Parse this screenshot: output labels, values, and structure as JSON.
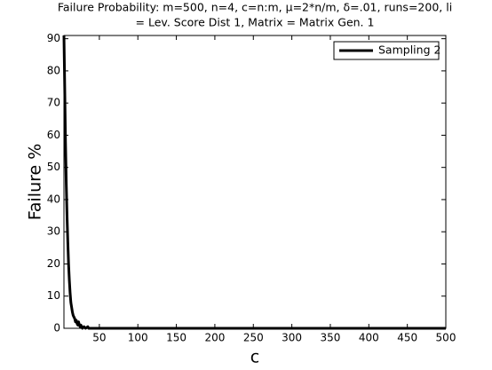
{
  "chart_data": {
    "type": "line",
    "title": [
      "Failure Probability: m=500, n=4, c=n:m, μ=2*n/m, δ=.01, runs=200, li",
      "= Lev. Score Dist 1, Matrix = Matrix Gen. 1"
    ],
    "xlabel": "c",
    "ylabel": "Failure %",
    "x": [
      4,
      5,
      6,
      7,
      8,
      9,
      10,
      11,
      12,
      13,
      14,
      15,
      16,
      17,
      18,
      19,
      20,
      21,
      22,
      23,
      24,
      25,
      26,
      27,
      28,
      30,
      32,
      35,
      36,
      500
    ],
    "series": [
      {
        "name": "Sampling 2",
        "color": "#000000",
        "values": [
          91,
          75,
          58,
          45,
          35,
          27,
          20,
          15,
          11,
          8,
          6.5,
          5,
          4,
          3.5,
          3,
          2,
          2.5,
          1.5,
          1,
          2,
          1,
          0.5,
          1,
          0.5,
          0,
          0.5,
          0,
          0.5,
          0,
          0
        ]
      }
    ],
    "xlim": [
      4,
      500
    ],
    "ylim": [
      0,
      91
    ],
    "xticks": [
      50,
      100,
      150,
      200,
      250,
      300,
      350,
      400,
      450,
      500
    ],
    "yticks": [
      0,
      10,
      20,
      30,
      40,
      50,
      60,
      70,
      80,
      90
    ],
    "legend": "northeast"
  }
}
